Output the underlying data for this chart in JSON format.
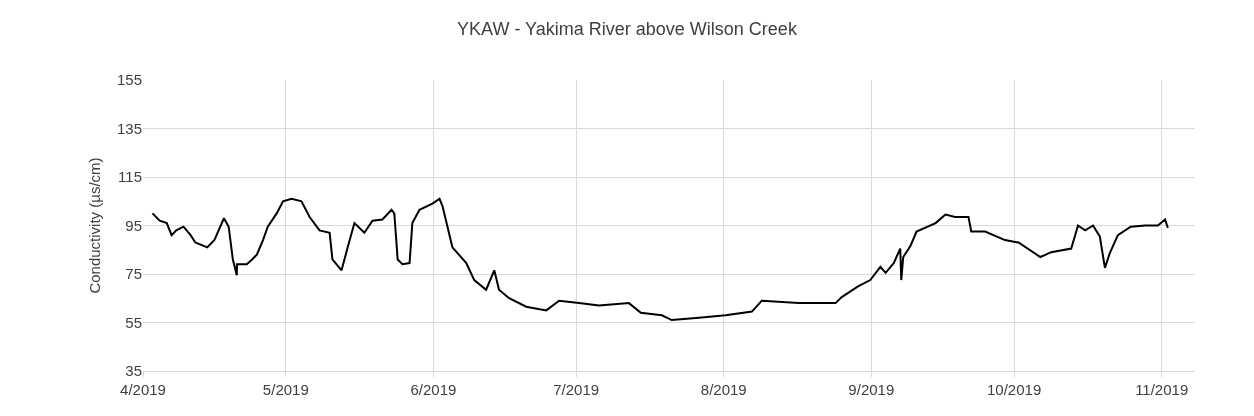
{
  "chart_data": {
    "type": "line",
    "title": "YKAW - Yakima River above Wilson Creek",
    "ylabel": "Conductivity (µs/cm)",
    "x": [
      "2019-04-03",
      "2019-04-04T12:00",
      "2019-04-06",
      "2019-04-07",
      "2019-04-08",
      "2019-04-09T12:00",
      "2019-04-11",
      "2019-04-12",
      "2019-04-14T12:00",
      "2019-04-16",
      "2019-04-18",
      "2019-04-19",
      "2019-04-19T21:00",
      "2019-04-20T17:00",
      "2019-04-20T18:00",
      "2019-04-22T19:00",
      "2019-04-23T22:00",
      "2019-04-24T22:00",
      "2019-04-26T05:00",
      "2019-04-27T05:00",
      "2019-04-29T02:00",
      "2019-04-30T10:00",
      "2019-05-02T05:00",
      "2019-05-04T07:00",
      "2019-05-06",
      "2019-05-08T02:00",
      "2019-05-10T05:00",
      "2019-05-10T19:00",
      "2019-05-12T17:00",
      "2019-05-14",
      "2019-05-15T10:00",
      "2019-05-17T12:00",
      "2019-05-19T05:00",
      "2019-05-21T07:00",
      "2019-05-23T05:00",
      "2019-05-23T19:00",
      "2019-05-24T12:00",
      "2019-05-25T12:00",
      "2019-05-27",
      "2019-05-27T14:00",
      "2019-05-29T02:00",
      "2019-05-31T19:00",
      "2019-06-02T07:00",
      "2019-06-02T22:00",
      "2019-06-05",
      "2019-06-07T22:00",
      "2019-06-09T14:00",
      "2019-06-12T02:00",
      "2019-06-13T19:00",
      "2019-06-14T19:00",
      "2019-06-16T22:00",
      "2019-06-20T12:00",
      "2019-06-24T17:00",
      "2019-06-27T10:00",
      "2019-07-01T14:00",
      "2019-07-05T19:00",
      "2019-07-12T02:00",
      "2019-07-14T14:00",
      "2019-07-19",
      "2019-07-21T02:00",
      "2019-07-26T19:00",
      "2019-08-01T10:00",
      "2019-08-06T22:00",
      "2019-08-09",
      "2019-08-16T17:00",
      "2019-08-24T12:00",
      "2019-08-25T19:00",
      "2019-08-29T07:00",
      "2019-08-31T19:00",
      "2019-09-02T22:00",
      "2019-09-04",
      "2019-09-05T17:00",
      "2019-09-07T02:00",
      "2019-09-07T07:00",
      "2019-09-07T17:00",
      "2019-09-09T05:00",
      "2019-09-10T12:00",
      "2019-09-14T12:00",
      "2019-09-16T14:00",
      "2019-09-18T14:00",
      "2019-09-21T10:00",
      "2019-09-22",
      "2019-09-24T22:00",
      "2019-09-29T02:00",
      "2019-10-01T22:00",
      "2019-10-06T12:00",
      "2019-10-08T19:00",
      "2019-10-13",
      "2019-10-14T10:00",
      "2019-10-15T22:00",
      "2019-10-17T14:00",
      "2019-10-19",
      "2019-10-20T02:00",
      "2019-10-21T02:00",
      "2019-10-22T19:00",
      "2019-10-25T12:00",
      "2019-10-28T12:00",
      "2019-10-31T05:00",
      "2019-11-01T17:00",
      "2019-11-02T07:00"
    ],
    "series": [
      {
        "color": "#000000",
        "values": [
          100,
          97,
          96,
          91,
          93,
          94.5,
          91,
          88,
          86,
          89,
          98,
          94.5,
          81,
          74.5,
          79,
          79,
          81,
          83,
          89,
          94.5,
          100,
          105,
          106,
          105,
          98.5,
          93,
          92,
          81,
          76.5,
          86,
          96,
          92,
          97,
          97.5,
          101.5,
          100,
          81,
          79,
          79.5,
          96,
          101.5,
          104,
          106,
          103,
          86,
          79.5,
          72.5,
          68.5,
          76.5,
          68.5,
          65,
          61.5,
          60,
          64,
          63,
          62,
          63,
          59,
          58,
          56,
          57,
          58,
          59.5,
          64,
          63,
          63,
          65.5,
          70,
          72.5,
          78,
          75.5,
          79.5,
          85.5,
          72.5,
          82,
          86.5,
          92.5,
          96,
          99.5,
          98.5,
          98.5,
          92.5,
          92.5,
          89,
          88,
          82,
          84,
          85.5,
          95,
          93,
          95,
          90.5,
          77.5,
          83.5,
          91,
          94.5,
          95,
          95,
          97.5,
          94
        ]
      }
    ],
    "xlim": [
      "2019-04-01",
      "2019-11-08"
    ],
    "xticks": [
      {
        "value": "2019-04-01",
        "label": "4/2019"
      },
      {
        "value": "2019-05-01",
        "label": "5/2019"
      },
      {
        "value": "2019-06-01",
        "label": "6/2019"
      },
      {
        "value": "2019-07-01",
        "label": "7/2019"
      },
      {
        "value": "2019-08-01",
        "label": "8/2019"
      },
      {
        "value": "2019-09-01",
        "label": "9/2019"
      },
      {
        "value": "2019-10-01",
        "label": "10/2019"
      },
      {
        "value": "2019-11-01",
        "label": "11/2019"
      }
    ],
    "ylim": [
      35,
      155
    ],
    "yticks": [
      35,
      55,
      75,
      95,
      115,
      135,
      155
    ],
    "grid": true,
    "marker": "none",
    "line_style": "solid"
  }
}
